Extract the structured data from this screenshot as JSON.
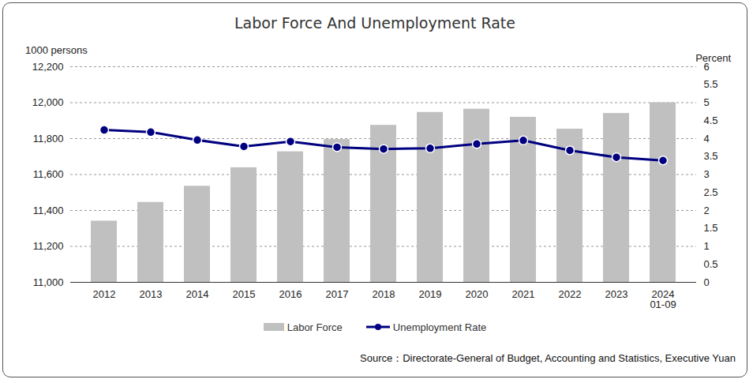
{
  "chart_data": {
    "type": "bar",
    "title": "Labor Force And Unemployment Rate",
    "y_label": "1000 persons",
    "y2_label": "Percent",
    "source": "Source：Directorate-General of Budget, Accounting and Statistics, Executive Yuan",
    "categories": [
      "2012",
      "2013",
      "2014",
      "2015",
      "2016",
      "2017",
      "2018",
      "2019",
      "2020",
      "2021",
      "2022",
      "2023",
      "2024\n01-09"
    ],
    "series": [
      {
        "name": "Labor Force",
        "type": "bar",
        "color": "#c0c0c0",
        "values": [
          11341,
          11445,
          11535,
          11638,
          11727,
          11795,
          11874,
          11946,
          11964,
          11919,
          11853,
          11940,
          12000
        ]
      },
      {
        "name": "Unemployment Rate",
        "type": "line",
        "axis": "y2",
        "color": "#000080",
        "marker": "circle",
        "line_style": "solid",
        "values": [
          4.24,
          4.18,
          3.96,
          3.78,
          3.92,
          3.76,
          3.71,
          3.73,
          3.85,
          3.95,
          3.67,
          3.48,
          3.39
        ]
      }
    ],
    "ylim": [
      11000,
      12200
    ],
    "yticks": [
      {
        "value": 11000,
        "label": "11,000"
      },
      {
        "value": 11200,
        "label": "11,200"
      },
      {
        "value": 11400,
        "label": "11,400"
      },
      {
        "value": 11600,
        "label": "11,600"
      },
      {
        "value": 11800,
        "label": "11,800"
      },
      {
        "value": 12000,
        "label": "12,000"
      },
      {
        "value": 12200,
        "label": "12,200"
      }
    ],
    "y2lim": [
      0,
      6
    ],
    "y2ticks": [
      0,
      0.5,
      1,
      1.5,
      2,
      2.5,
      3,
      3.5,
      4,
      4.5,
      5,
      5.5,
      6
    ],
    "grid": true,
    "legend": "bottom"
  }
}
